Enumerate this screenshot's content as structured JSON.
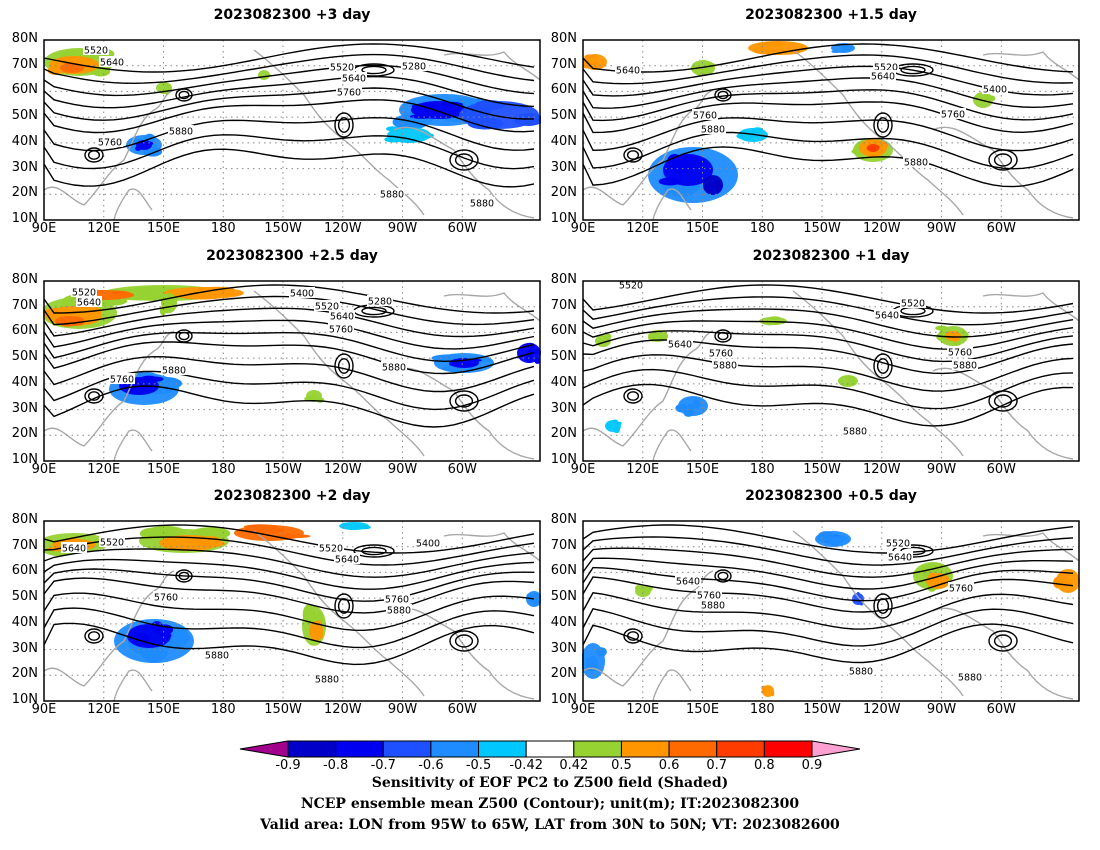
{
  "panels": [
    {
      "title": "2023082300 +3 day",
      "contour_labels": [
        "5520",
        "5640",
        "5280",
        "5520",
        "5640",
        "5760",
        "5880",
        "5760",
        "5880",
        "5880"
      ]
    },
    {
      "title": "2023082300 +1.5 day",
      "contour_labels": [
        "5640",
        "5520",
        "5640",
        "5400",
        "5760",
        "5880",
        "5760",
        "5880"
      ]
    },
    {
      "title": "2023082300 +2.5 day",
      "contour_labels": [
        "5520",
        "5640",
        "5400",
        "5520",
        "5280",
        "5640",
        "5760",
        "5760",
        "5880",
        "5880"
      ]
    },
    {
      "title": "2023082300 +1 day",
      "contour_labels": [
        "5520",
        "5520",
        "5640",
        "5640",
        "5760",
        "5880",
        "5760",
        "5880",
        "5880"
      ]
    },
    {
      "title": "2023082300 +2 day",
      "contour_labels": [
        "5520",
        "5640",
        "5520",
        "5400",
        "5640",
        "5760",
        "5760",
        "5880",
        "5880",
        "5880"
      ]
    },
    {
      "title": "2023082300 +0.5 day",
      "contour_labels": [
        "5520",
        "5640",
        "5640",
        "5760",
        "5880",
        "5760",
        "5880",
        "5880"
      ]
    }
  ],
  "lat_labels": [
    "80N",
    "70N",
    "60N",
    "50N",
    "40N",
    "30N",
    "20N",
    "10N"
  ],
  "lon_labels": [
    "90E",
    "120E",
    "150E",
    "180",
    "150W",
    "120W",
    "90W",
    "60W"
  ],
  "colorbar": {
    "labels": [
      "-0.9",
      "-0.8",
      "-0.7",
      "-0.6",
      "-0.5",
      "-0.42",
      "0.42",
      "0.5",
      "0.6",
      "0.7",
      "0.8",
      "0.9"
    ],
    "colors": [
      "#a0008c",
      "#0000c8",
      "#0000f0",
      "#1e50ff",
      "#1e8cff",
      "#00c8ff",
      "#ffffff",
      "#96d232",
      "#ff9600",
      "#ff6a00",
      "#ff3c00",
      "#ff0000",
      "#ffa0d2"
    ]
  },
  "caption": {
    "line1": "Sensitivity of EOF PC2 to Z500 field (Shaded)",
    "line2": "NCEP ensemble mean Z500 (Contour); unit(m); IT:2023082300",
    "line3": "Valid area: LON from 95W to 65W, LAT from 30N to 50N; VT: 2023082600"
  }
}
